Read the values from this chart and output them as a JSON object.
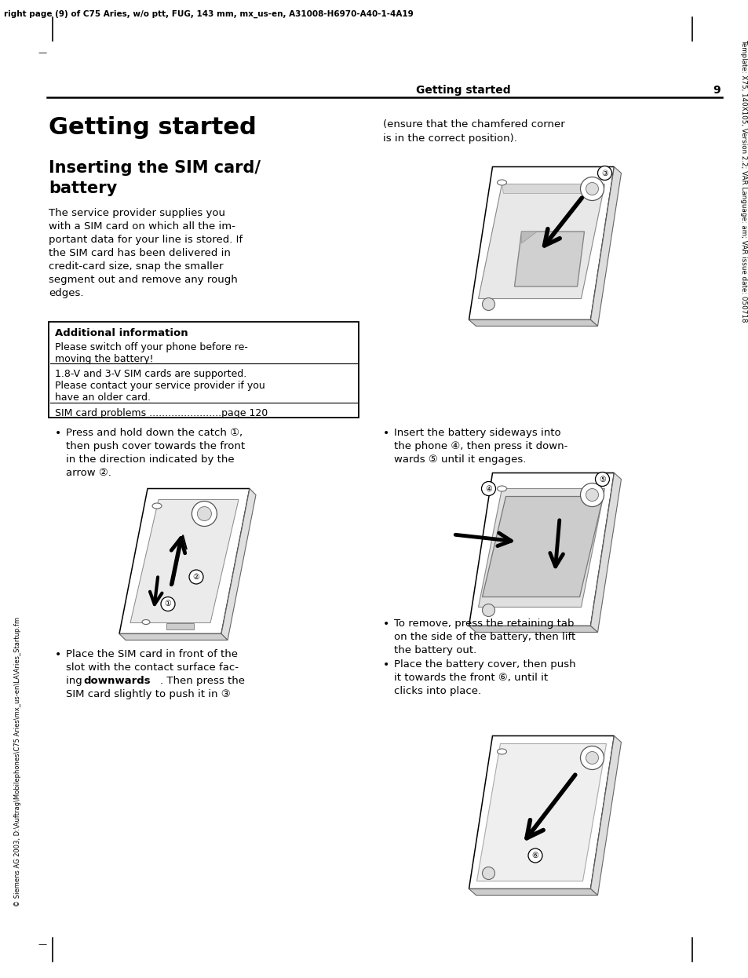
{
  "bg_color": "#ffffff",
  "top_header": "right page (9) of C75 Aries, w/o ptt, FUG, 143 mm, mx_us-en, A31008-H6970-A40-1-4A19",
  "right_side_text": "Template: X75, 140X105, Version 2.2; VAR Language: am; VAR issue date: 050718",
  "left_side_text": "© Siemens AG 2003, D:\\Auftrag\\Mobilephones\\C75 Aries\\mx_us-en\\LA\\Aries_Startup.fm",
  "header_section": "Getting started",
  "header_page_num": "9",
  "main_title": "Getting started",
  "subtitle1": "Inserting the SIM card/",
  "subtitle2": "battery",
  "body_lines": [
    "The service provider supplies you",
    "with a SIM card on which all the im-",
    "portant data for your line is stored. If",
    "the SIM card has been delivered in",
    "credit-card size, snap the smaller",
    "segment out and remove any rough",
    "edges."
  ],
  "box_title": "Additional information",
  "box_text1a": "Please switch off your phone before re-",
  "box_text1b": "moving the battery!",
  "box_text2a": "1.8-V and 3-V SIM cards are supported.",
  "box_text2b": "Please contact your service provider if you",
  "box_text2c": "have an older card.",
  "box_text3": "SIM card problems .......................page 120",
  "right_text1": "(ensure that the chamfered corner",
  "right_text2": "is in the correct position).",
  "b1_lines": [
    "Press and hold down the catch ①,",
    "then push cover towards the front",
    "in the direction indicated by the",
    "arrow ②."
  ],
  "b2_lines_pre": "Place the SIM card in front of the",
  "b2_line2": "slot with the contact surface fac-",
  "b2_line3a": "ing ",
  "b2_line3b": "downwards",
  "b2_line3c": ". Then press the",
  "b2_line4": "SIM card slightly to push it in ③",
  "b3_lines": [
    "Insert the battery sideways into",
    "the phone ④, then press it down-",
    "wards ⑤ until it engages."
  ],
  "b4_lines": [
    "To remove, press the retaining tab",
    "on the side of the battery, then lift",
    "the battery out."
  ],
  "b5_lines": [
    "Place the battery cover, then push",
    "it towards the front ⑥, until it",
    "clicks into place."
  ]
}
